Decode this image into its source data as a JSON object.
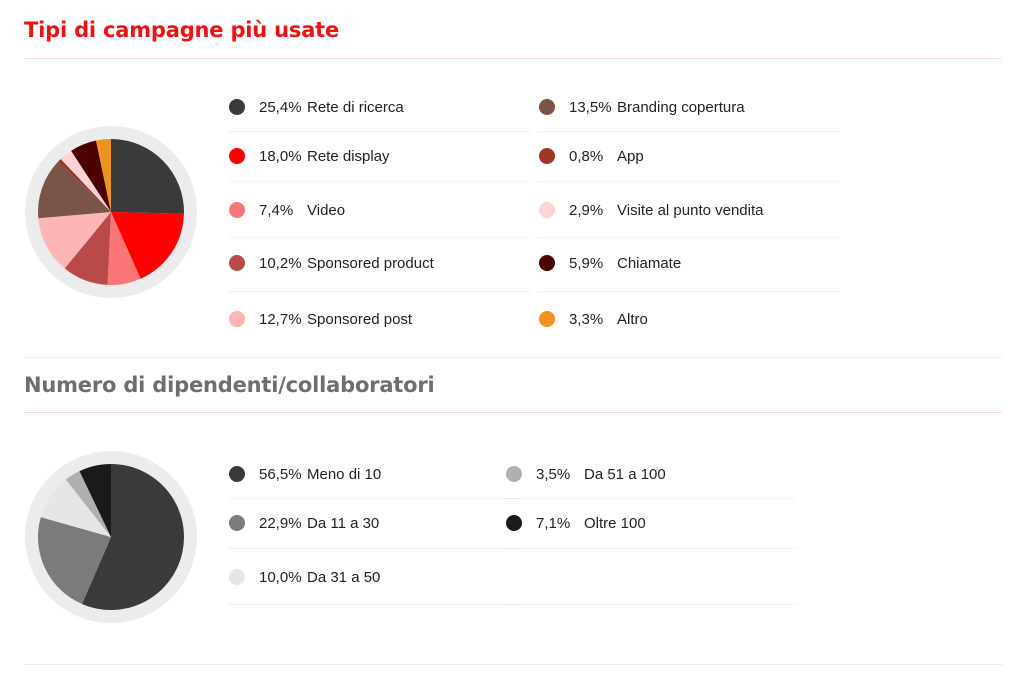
{
  "sections": [
    {
      "title": "Tipi di campagne più usate",
      "title_color": "#ee1111",
      "chart_data": {
        "type": "pie",
        "title": "Tipi di campagne più usate",
        "slices": [
          {
            "label": "Rete di ricerca",
            "pct": "25,4%",
            "value": 25.4,
            "color": "#3a3a3a"
          },
          {
            "label": "Rete display",
            "pct": "18,0%",
            "value": 18.0,
            "color": "#ff0000"
          },
          {
            "label": "Video",
            "pct": "7,4%",
            "value": 7.4,
            "color": "#fb7777"
          },
          {
            "label": "Sponsored product",
            "pct": "10,2%",
            "value": 10.2,
            "color": "#b94a4a"
          },
          {
            "label": "Sponsored post",
            "pct": "12,7%",
            "value": 12.7,
            "color": "#fdb5b5"
          },
          {
            "label": "Branding copertura",
            "pct": "13,5%",
            "value": 13.5,
            "color": "#7a5349"
          },
          {
            "label": "App",
            "pct": "0,8%",
            "value": 0.8,
            "color": "#9c3526"
          },
          {
            "label": "Visite al punto vendita",
            "pct": "2,9%",
            "value": 2.9,
            "color": "#ffd3d3"
          },
          {
            "label": "Chiamate",
            "pct": "5,9%",
            "value": 5.9,
            "color": "#4d0000"
          },
          {
            "label": "Altro",
            "pct": "3,3%",
            "value": 3.3,
            "color": "#f39224"
          }
        ]
      }
    },
    {
      "title": "Numero di dipendenti/collaboratori",
      "title_color": "#6e6e6e",
      "chart_data": {
        "type": "pie",
        "title": "Numero di dipendenti/collaboratori",
        "slices": [
          {
            "label": "Meno di 10",
            "pct": "56,5%",
            "value": 56.5,
            "color": "#3a3a3a"
          },
          {
            "label": "Da 11 a 30",
            "pct": "22,9%",
            "value": 22.9,
            "color": "#7b7b7b"
          },
          {
            "label": "Da 31 a 50",
            "pct": "10,0%",
            "value": 10.0,
            "color": "#e6e6e6"
          },
          {
            "label": "Da 51 a 100",
            "pct": "3,5%",
            "value": 3.5,
            "color": "#b0b0b0"
          },
          {
            "label": "Oltre 100",
            "pct": "7,1%",
            "value": 7.1,
            "color": "#1a1a1a"
          }
        ]
      }
    }
  ],
  "colors": {
    "rule": "#f7dada",
    "rule_grey": "#ececec",
    "pie_ring": "#ececec"
  }
}
